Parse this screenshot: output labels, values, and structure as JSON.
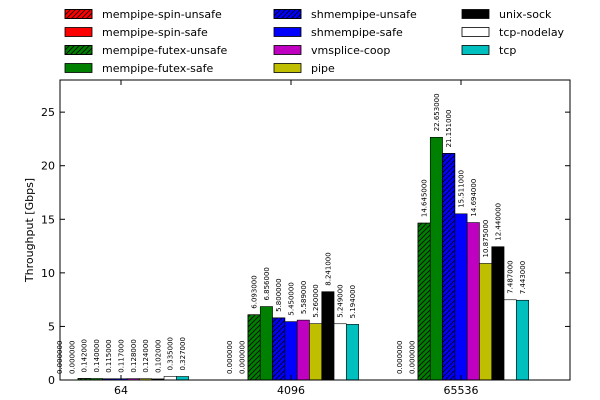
{
  "chart_data": {
    "type": "bar",
    "xlabel": "",
    "ylabel": "Throughput [Gbps]",
    "ylim": [
      0,
      28
    ],
    "yticks": [
      0,
      5,
      10,
      15,
      20,
      25
    ],
    "grid": false,
    "legend_position": "top",
    "categories": [
      "64",
      "4096",
      "65536"
    ],
    "series": [
      {
        "name": "mempipe-spin-unsafe",
        "color": "#ff0000",
        "hatch": true,
        "values": [
          0.0,
          0.0,
          0.0
        ],
        "labels": [
          "0.000000",
          "0.000000",
          "0.000000"
        ]
      },
      {
        "name": "mempipe-spin-safe",
        "color": "#ff0000",
        "hatch": false,
        "values": [
          0.0,
          0.0,
          0.0
        ],
        "labels": [
          "0.000000",
          "0.000000",
          "0.000000"
        ]
      },
      {
        "name": "mempipe-futex-unsafe",
        "color": "#008000",
        "hatch": true,
        "values": [
          0.142,
          6.093,
          14.645
        ],
        "labels": [
          "0.142000",
          "6.093000",
          "14.645000"
        ]
      },
      {
        "name": "mempipe-futex-safe",
        "color": "#008000",
        "hatch": false,
        "values": [
          0.14,
          6.856,
          22.653
        ],
        "labels": [
          "0.140000",
          "6.856000",
          "22.653000"
        ]
      },
      {
        "name": "shmempipe-unsafe",
        "color": "#0000ff",
        "hatch": true,
        "values": [
          0.115,
          5.8,
          21.151
        ],
        "labels": [
          "0.115000",
          "5.800000",
          "21.151000"
        ]
      },
      {
        "name": "shmempipe-safe",
        "color": "#0000ff",
        "hatch": false,
        "values": [
          0.117,
          5.45,
          15.511
        ],
        "labels": [
          "0.117000",
          "5.450000",
          "15.511000"
        ]
      },
      {
        "name": "vmsplice-coop",
        "color": "#c000c0",
        "hatch": false,
        "values": [
          0.128,
          5.589,
          14.694
        ],
        "labels": [
          "0.128000",
          "5.589000",
          "14.694000"
        ]
      },
      {
        "name": "pipe",
        "color": "#bfbf00",
        "hatch": false,
        "values": [
          0.124,
          5.26,
          10.875
        ],
        "labels": [
          "0.124000",
          "5.260000",
          "10.875000"
        ]
      },
      {
        "name": "unix-sock",
        "color": "#000000",
        "hatch": false,
        "values": [
          0.102,
          8.241,
          12.44
        ],
        "labels": [
          "0.102000",
          "8.241000",
          "12.440000"
        ]
      },
      {
        "name": "tcp-nodelay",
        "color": "#ffffff",
        "hatch": false,
        "values": [
          0.335,
          5.249,
          7.487
        ],
        "labels": [
          "0.335000",
          "5.249000",
          "7.487000"
        ]
      },
      {
        "name": "tcp",
        "color": "#00bfbf",
        "hatch": false,
        "values": [
          0.327,
          5.194,
          7.443
        ],
        "labels": [
          "0.327000",
          "5.194000",
          "7.443000"
        ]
      }
    ]
  }
}
